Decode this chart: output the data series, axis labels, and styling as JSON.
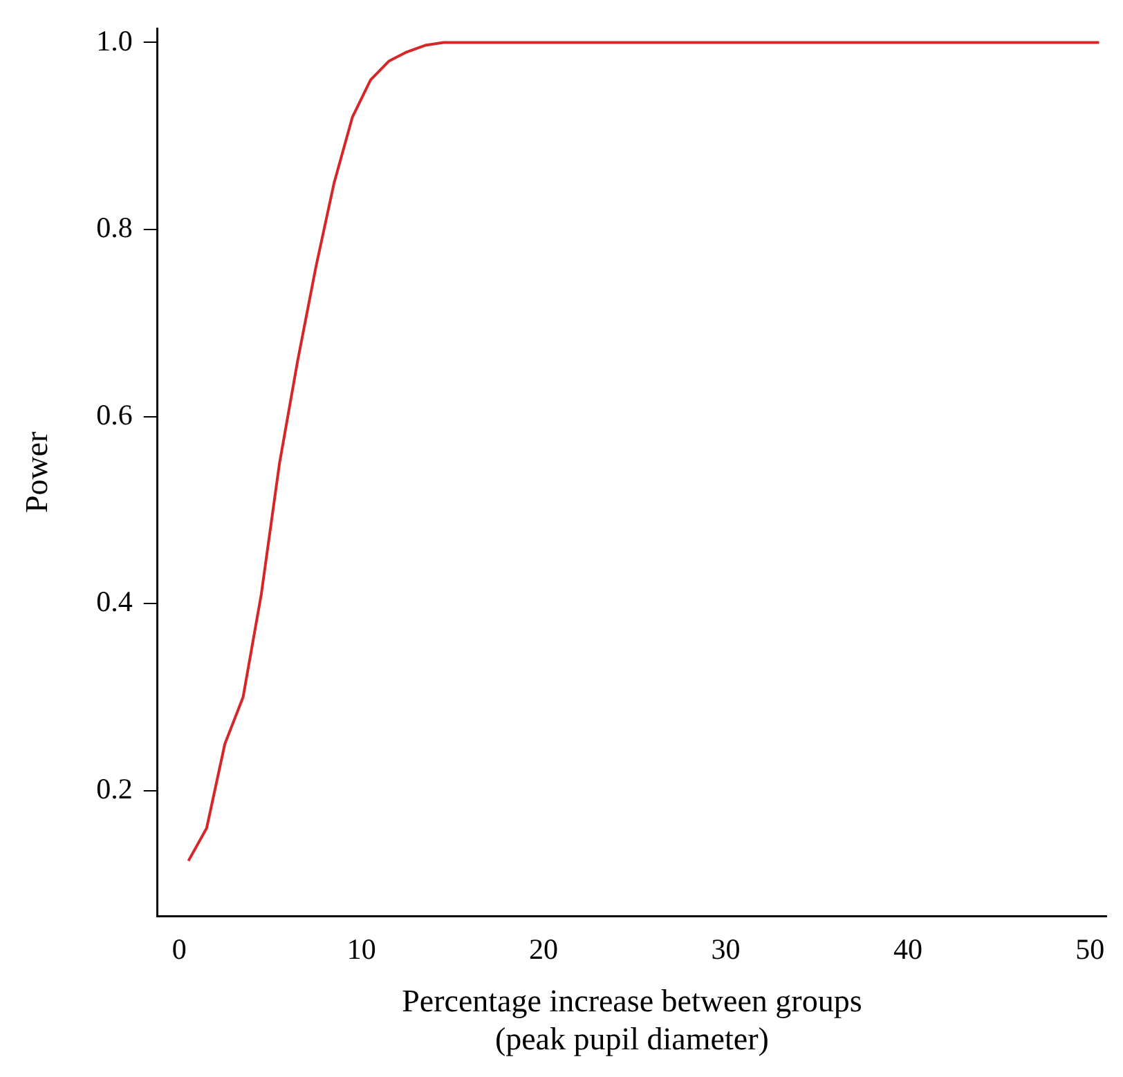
{
  "chart_data": {
    "type": "line",
    "xlabel": "Percentage increase between groups\n(peak pupil diameter)",
    "ylabel": "Power",
    "series": [
      {
        "color": "#d62728",
        "x": [
          0.5,
          1.5,
          2.5,
          3.5,
          4.5,
          5.5,
          6.5,
          7.5,
          8.5,
          9.5,
          10.5,
          11.5,
          12.5,
          13.5,
          14.5,
          15.5,
          20.5,
          30.5,
          40.5,
          50.5
        ],
        "values": [
          0.125,
          0.16,
          0.25,
          0.3,
          0.41,
          0.55,
          0.66,
          0.76,
          0.85,
          0.92,
          0.96,
          0.98,
          0.99,
          0.997,
          1.0,
          1.0,
          1.0,
          1.0,
          1.0,
          1.0
        ]
      }
    ],
    "xlim": [
      -1.2,
      50.9
    ],
    "xticks": [
      0,
      10,
      20,
      30,
      40,
      50
    ],
    "ylim": [
      0.066,
      1.015
    ],
    "yticks": [
      0.2,
      0.4,
      0.6,
      0.8,
      {
        "value": 1,
        "label": "1.0"
      }
    ],
    "grid": false,
    "legend": false,
    "marker": "none",
    "line_style": "solid"
  }
}
